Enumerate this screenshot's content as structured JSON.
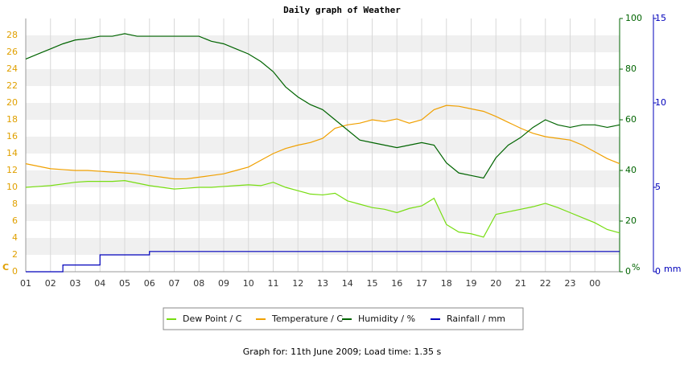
{
  "chart_data": {
    "type": "line",
    "title": "Daily graph of Weather",
    "x": [
      1,
      1.5,
      2,
      2.5,
      3,
      3.5,
      4,
      4.5,
      5,
      5.5,
      6,
      6.5,
      7,
      7.5,
      8,
      8.5,
      9,
      9.5,
      10,
      10.5,
      11,
      11.5,
      12,
      12.5,
      13,
      13.5,
      14,
      14.5,
      15,
      15.5,
      16,
      16.5,
      17,
      17.5,
      18,
      18.5,
      19,
      19.5,
      20,
      20.5,
      21,
      21.5,
      22,
      22.5,
      23,
      23.5,
      24,
      24.5,
      25
    ],
    "xlim": [
      1,
      25
    ],
    "xticks": [
      {
        "value": 1,
        "label": "01"
      },
      {
        "value": 2,
        "label": "02"
      },
      {
        "value": 3,
        "label": "03"
      },
      {
        "value": 4,
        "label": "04"
      },
      {
        "value": 5,
        "label": "05"
      },
      {
        "value": 6,
        "label": "06"
      },
      {
        "value": 7,
        "label": "07"
      },
      {
        "value": 8,
        "label": "08"
      },
      {
        "value": 9,
        "label": "09"
      },
      10,
      11,
      12,
      13,
      14,
      15,
      16,
      17,
      18,
      19,
      20,
      21,
      22,
      23,
      {
        "value": 24,
        "label": "00"
      }
    ],
    "ylim": [
      0,
      30
    ],
    "yticks": [
      0,
      2,
      4,
      6,
      8,
      10,
      12,
      14,
      16,
      18,
      20,
      22,
      24,
      26,
      28
    ],
    "y_unit": "C",
    "y2lim": [
      0,
      100
    ],
    "y2ticks": [
      0,
      20,
      40,
      60,
      80,
      100
    ],
    "y2_unit": "%",
    "y3lim": [
      0,
      15
    ],
    "y3ticks": [
      0,
      5,
      10,
      15
    ],
    "y3_unit": "mm",
    "grid": true,
    "series": [
      {
        "name": "Dew Point / C",
        "color": "#77dd11",
        "axis": "y",
        "values": [
          10.0,
          10.1,
          10.2,
          10.4,
          10.6,
          10.7,
          10.7,
          10.7,
          10.8,
          10.5,
          10.2,
          10.0,
          9.8,
          9.9,
          10.0,
          10.0,
          10.1,
          10.2,
          10.3,
          10.2,
          10.6,
          10.0,
          9.6,
          9.2,
          9.1,
          9.3,
          8.4,
          8.0,
          7.6,
          7.4,
          7.0,
          7.5,
          7.8,
          8.7,
          5.6,
          4.7,
          4.5,
          4.1,
          6.8,
          7.1,
          7.4,
          7.7,
          8.1,
          7.6,
          7.0,
          6.4,
          5.8,
          5.0,
          4.6
        ]
      },
      {
        "name": "Temperature / C",
        "color": "#f0a000",
        "axis": "y",
        "values": [
          12.8,
          12.5,
          12.2,
          12.1,
          12.0,
          12.0,
          11.9,
          11.8,
          11.7,
          11.6,
          11.4,
          11.2,
          11.0,
          11.0,
          11.2,
          11.4,
          11.6,
          12.0,
          12.4,
          13.2,
          14.0,
          14.6,
          15.0,
          15.3,
          15.8,
          17.0,
          17.4,
          17.6,
          18.0,
          17.8,
          18.1,
          17.6,
          18.0,
          19.2,
          19.7,
          19.6,
          19.3,
          19.0,
          18.4,
          17.7,
          17.0,
          16.4,
          16.0,
          15.8,
          15.6,
          15.0,
          14.2,
          13.4,
          12.8
        ]
      },
      {
        "name": "Humidity / %",
        "color": "#006400",
        "axis": "y2",
        "values": [
          84,
          86,
          88,
          90,
          91.5,
          92,
          93,
          93,
          94,
          93,
          93,
          93,
          93,
          93,
          93,
          91,
          90,
          88,
          86,
          83,
          79,
          73,
          69,
          66,
          64,
          60,
          56,
          52,
          51,
          50,
          49,
          50,
          51,
          50,
          43,
          39,
          38,
          37,
          45,
          50,
          53,
          57,
          60,
          58,
          57,
          58,
          58,
          57,
          58
        ]
      },
      {
        "name": "Rainfall / mm",
        "color": "#0000bb",
        "axis": "y3",
        "step": true,
        "values": [
          0,
          0,
          0,
          0.4,
          0.4,
          0.4,
          1.0,
          1.0,
          1.0,
          1.0,
          1.2,
          1.2,
          1.2,
          1.2,
          1.2,
          1.2,
          1.2,
          1.2,
          1.2,
          1.2,
          1.2,
          1.2,
          1.2,
          1.2,
          1.2,
          1.2,
          1.2,
          1.2,
          1.2,
          1.2,
          1.2,
          1.2,
          1.2,
          1.2,
          1.2,
          1.2,
          1.2,
          1.2,
          1.2,
          1.2,
          1.2,
          1.2,
          1.2,
          1.2,
          1.2,
          1.2,
          1.2,
          1.2,
          1.2
        ]
      }
    ]
  },
  "footer": "Graph for: 11th June 2009; Load time: 1.35 s"
}
